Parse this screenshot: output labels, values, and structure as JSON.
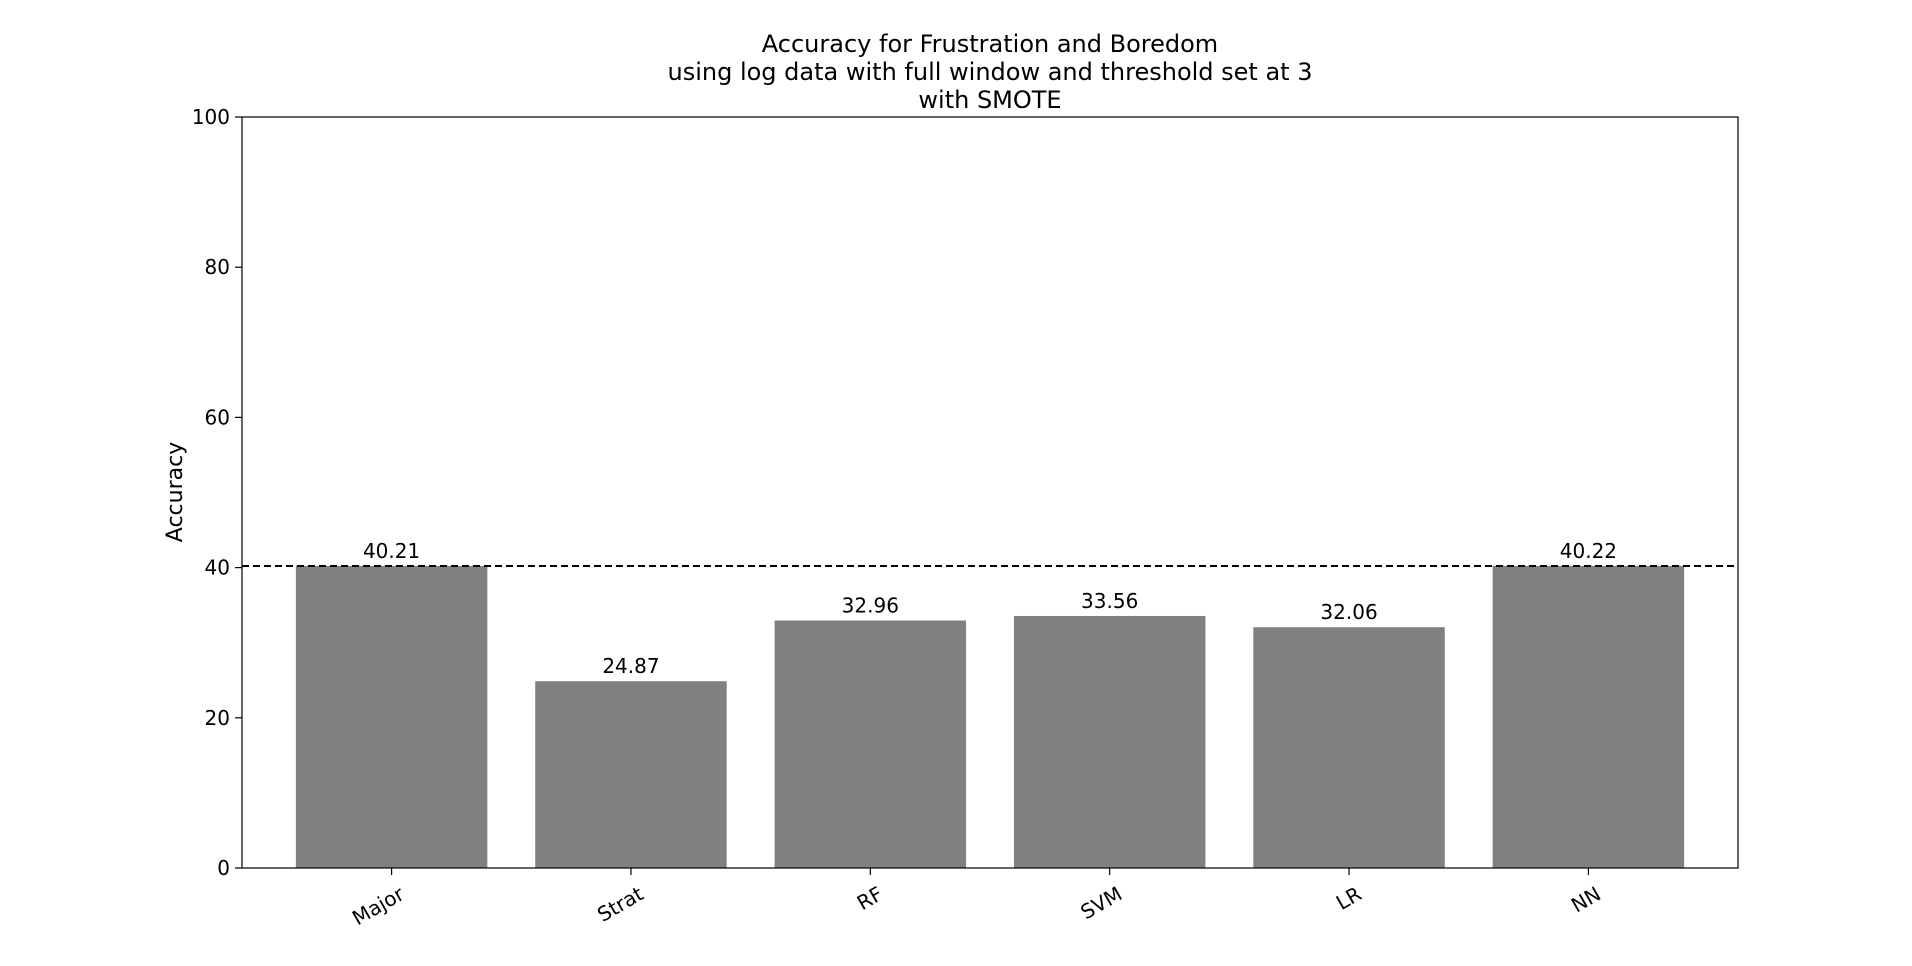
{
  "chart_data": {
    "type": "bar",
    "title": [
      "Accuracy for Frustration and Boredom",
      "using log data with full window and threshold set at 3",
      "with SMOTE"
    ],
    "xlabel": "",
    "ylabel": "Accuracy",
    "categories": [
      "Major",
      "Strat",
      "RF",
      "SVM",
      "LR",
      "NN"
    ],
    "values": [
      40.21,
      24.87,
      32.96,
      33.56,
      32.06,
      40.22
    ],
    "value_labels": [
      "40.21",
      "24.87",
      "32.96",
      "33.56",
      "32.06",
      "40.22"
    ],
    "ylim": [
      0,
      100
    ],
    "yticks": [
      0,
      20,
      40,
      60,
      80,
      100
    ],
    "ytick_labels": [
      "0",
      "20",
      "40",
      "60",
      "80",
      "100"
    ],
    "reference_line": {
      "value": 40.21,
      "style": "dashed",
      "color": "#000000"
    },
    "bar_color": "#808080",
    "x_tick_rotation_deg": -30,
    "grid": false,
    "legend": "none"
  }
}
